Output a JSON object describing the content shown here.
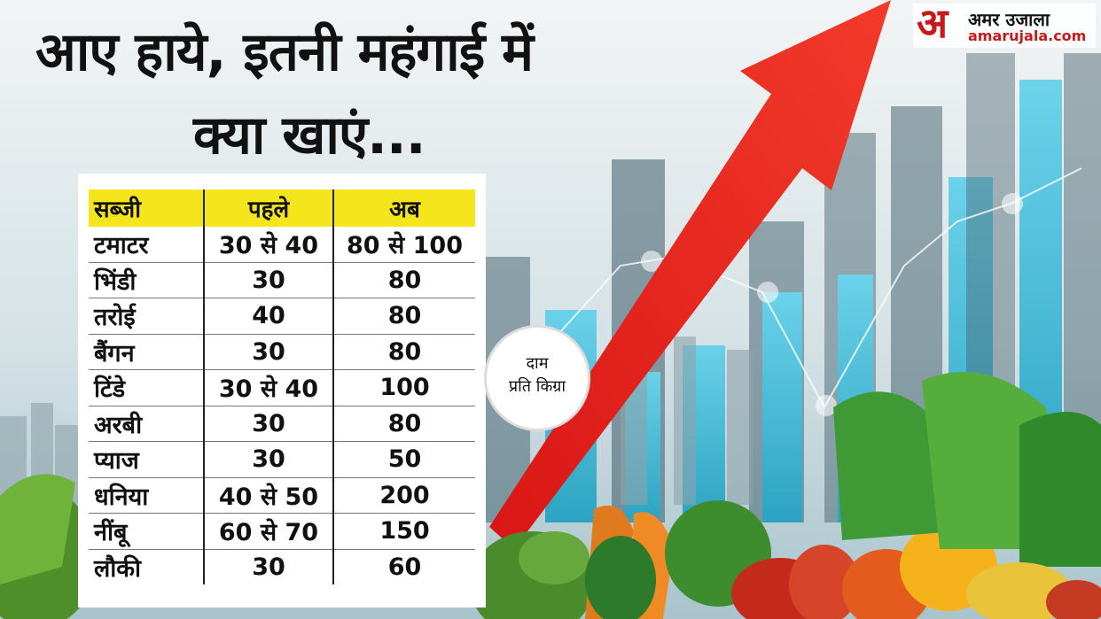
{
  "headline": {
    "line1": "आए हाये, इतनी महंगाई में",
    "line2": "क्या खाएं..."
  },
  "table": {
    "headers": [
      "सब्जी",
      "पहले",
      "अब"
    ],
    "rows": [
      [
        "टमाटर",
        "30 से 40",
        "80 से 100"
      ],
      [
        "भिंडी",
        "30",
        "80"
      ],
      [
        "तरोई",
        "40",
        "80"
      ],
      [
        "बैंगन",
        "30",
        "80"
      ],
      [
        "टिंडे",
        "30 से 40",
        "100"
      ],
      [
        "अरबी",
        "30",
        "80"
      ],
      [
        "प्याज",
        "30",
        "50"
      ],
      [
        "धनिया",
        "40 से 50",
        "200"
      ],
      [
        "नींबू",
        "60 से 70",
        "150"
      ],
      [
        "लौकी",
        "30",
        "60"
      ]
    ]
  },
  "rate_note": {
    "line1": "दाम",
    "line2": "प्रति किग्रा"
  },
  "logo": {
    "glyph": "अ",
    "name": "अमर उजाला",
    "url": "amarujala.com"
  },
  "colors": {
    "header_yellow": "#f5e51c",
    "arrow_red": "#e02222",
    "bar_blue": "#34b7d3",
    "brand_red": "#c71b1b"
  }
}
